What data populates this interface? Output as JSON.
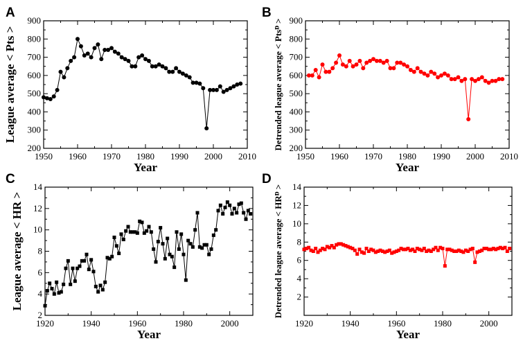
{
  "chart_data": [
    {
      "type": "line",
      "panel": "A",
      "xlabel": "Year",
      "ylabel": "League average < Pts >",
      "xlim": [
        1950,
        2010
      ],
      "ylim": [
        200,
        900
      ],
      "xticks": [
        1950,
        1960,
        1970,
        1980,
        1990,
        2000,
        2010
      ],
      "yticks": [
        200,
        300,
        400,
        500,
        600,
        700,
        800,
        900
      ],
      "marker": "circle",
      "color": "#000000",
      "series": [
        {
          "x": [
            1950,
            1951,
            1952,
            1953,
            1954,
            1955,
            1956,
            1957,
            1958,
            1959,
            1960,
            1961,
            1962,
            1963,
            1964,
            1965,
            1966,
            1967,
            1968,
            1969,
            1970,
            1971,
            1972,
            1973,
            1974,
            1975,
            1976,
            1977,
            1978,
            1979,
            1980,
            1981,
            1982,
            1983,
            1984,
            1985,
            1986,
            1987,
            1988,
            1989,
            1990,
            1991,
            1992,
            1993,
            1994,
            1995,
            1996,
            1997,
            1998,
            1999,
            2000,
            2001,
            2002,
            2003,
            2004,
            2005,
            2006,
            2007,
            2008
          ],
          "values": [
            480,
            475,
            470,
            485,
            520,
            620,
            590,
            640,
            680,
            700,
            800,
            760,
            710,
            720,
            700,
            750,
            770,
            690,
            740,
            740,
            750,
            730,
            720,
            700,
            690,
            680,
            650,
            650,
            700,
            710,
            690,
            680,
            650,
            650,
            660,
            650,
            640,
            620,
            620,
            640,
            620,
            610,
            600,
            590,
            560,
            560,
            555,
            530,
            310,
            520,
            520,
            520,
            540,
            510,
            520,
            530,
            540,
            550,
            555
          ]
        }
      ]
    },
    {
      "type": "line",
      "panel": "B",
      "xlabel": "Year",
      "ylabel": "Detrended league average < Ptsᴰ >",
      "xlim": [
        1950,
        2010
      ],
      "ylim": [
        200,
        900
      ],
      "xticks": [
        1950,
        1960,
        1970,
        1980,
        1990,
        2000,
        2010
      ],
      "yticks": [
        200,
        300,
        400,
        500,
        600,
        700,
        800,
        900
      ],
      "marker": "circle",
      "color": "#ff0000",
      "series": [
        {
          "x": [
            1951,
            1952,
            1953,
            1954,
            1955,
            1956,
            1957,
            1958,
            1959,
            1960,
            1961,
            1962,
            1963,
            1964,
            1965,
            1966,
            1967,
            1968,
            1969,
            1970,
            1971,
            1972,
            1973,
            1974,
            1975,
            1976,
            1977,
            1978,
            1979,
            1980,
            1981,
            1982,
            1983,
            1984,
            1985,
            1986,
            1987,
            1988,
            1989,
            1990,
            1991,
            1992,
            1993,
            1994,
            1995,
            1996,
            1997,
            1998,
            1999,
            2000,
            2001,
            2002,
            2003,
            2004,
            2005,
            2006,
            2007,
            2008
          ],
          "values": [
            600,
            600,
            630,
            590,
            660,
            620,
            620,
            640,
            670,
            710,
            660,
            650,
            680,
            650,
            660,
            680,
            640,
            670,
            680,
            690,
            680,
            680,
            670,
            680,
            640,
            640,
            670,
            670,
            660,
            650,
            630,
            620,
            640,
            620,
            610,
            600,
            620,
            610,
            590,
            600,
            610,
            600,
            580,
            580,
            590,
            570,
            580,
            360,
            580,
            570,
            580,
            590,
            570,
            560,
            570,
            570,
            580,
            580
          ]
        }
      ]
    },
    {
      "type": "line",
      "panel": "C",
      "xlabel": "Year",
      "ylabel": "League average < HR >",
      "xlim": [
        1920,
        2010
      ],
      "ylim": [
        2,
        14
      ],
      "xticks": [
        1920,
        1940,
        1960,
        1980,
        2000
      ],
      "yticks": [
        2,
        4,
        6,
        8,
        10,
        12,
        14
      ],
      "marker": "square",
      "color": "#000000",
      "series": [
        {
          "x": [
            1920,
            1921,
            1922,
            1923,
            1924,
            1925,
            1926,
            1927,
            1928,
            1929,
            1930,
            1931,
            1932,
            1933,
            1934,
            1935,
            1936,
            1937,
            1938,
            1939,
            1940,
            1941,
            1942,
            1943,
            1944,
            1945,
            1946,
            1947,
            1948,
            1949,
            1950,
            1951,
            1952,
            1953,
            1954,
            1955,
            1956,
            1957,
            1958,
            1959,
            1960,
            1961,
            1962,
            1963,
            1964,
            1965,
            1966,
            1967,
            1968,
            1969,
            1970,
            1971,
            1972,
            1973,
            1974,
            1975,
            1976,
            1977,
            1978,
            1979,
            1980,
            1981,
            1982,
            1983,
            1984,
            1985,
            1986,
            1987,
            1988,
            1989,
            1990,
            1991,
            1992,
            1993,
            1994,
            1995,
            1996,
            1997,
            1998,
            1999,
            2000,
            2001,
            2002,
            2003,
            2004,
            2005,
            2006,
            2007,
            2008,
            2009
          ],
          "values": [
            2.9,
            4.3,
            5.0,
            4.5,
            4.0,
            5.1,
            4.1,
            4.2,
            4.9,
            6.4,
            7.1,
            4.9,
            6.4,
            5.2,
            6.4,
            6.6,
            7.1,
            7.1,
            7.7,
            6.3,
            7.2,
            6.1,
            4.7,
            4.2,
            4.8,
            4.4,
            5.1,
            7.4,
            7.3,
            7.5,
            9.3,
            8.5,
            7.8,
            9.6,
            9.1,
            9.9,
            10.3,
            9.8,
            9.8,
            9.8,
            9.7,
            10.8,
            10.7,
            9.7,
            9.9,
            10.3,
            9.8,
            8.2,
            7.0,
            8.9,
            10.2,
            8.7,
            7.3,
            9.2,
            7.7,
            7.5,
            6.5,
            9.8,
            8.2,
            9.6,
            7.7,
            5.3,
            9.0,
            8.7,
            8.4,
            10.0,
            11.6,
            8.4,
            8.3,
            8.6,
            8.6,
            7.7,
            8.2,
            9.5,
            10.0,
            11.8,
            12.3,
            11.5,
            12.1,
            12.6,
            12.3,
            11.5,
            12.0,
            11.6,
            12.4,
            12.5,
            11.6,
            11.0,
            11.8,
            11.5
          ]
        }
      ]
    },
    {
      "type": "line",
      "panel": "D",
      "xlabel": "Year",
      "ylabel": "Detrended league average < HRᴰ >",
      "xlim": [
        1920,
        2010
      ],
      "ylim": [
        0,
        14
      ],
      "xticks": [
        1920,
        1940,
        1960,
        1980,
        2000
      ],
      "yticks": [
        2,
        4,
        6,
        8,
        10,
        12,
        14
      ],
      "marker": "square",
      "color": "#ff0000",
      "series": [
        {
          "x": [
            1920,
            1921,
            1922,
            1923,
            1924,
            1925,
            1926,
            1927,
            1928,
            1929,
            1930,
            1931,
            1932,
            1933,
            1934,
            1935,
            1936,
            1937,
            1938,
            1939,
            1940,
            1941,
            1942,
            1943,
            1944,
            1945,
            1946,
            1947,
            1948,
            1949,
            1950,
            1951,
            1952,
            1953,
            1954,
            1955,
            1956,
            1957,
            1958,
            1959,
            1960,
            1961,
            1962,
            1963,
            1964,
            1965,
            1966,
            1967,
            1968,
            1969,
            1970,
            1971,
            1972,
            1973,
            1974,
            1975,
            1976,
            1977,
            1978,
            1979,
            1980,
            1981,
            1982,
            1983,
            1984,
            1985,
            1986,
            1987,
            1988,
            1989,
            1990,
            1991,
            1992,
            1993,
            1994,
            1995,
            1996,
            1997,
            1998,
            1999,
            2000,
            2001,
            2002,
            2003,
            2004,
            2005,
            2006,
            2007,
            2008,
            2009
          ],
          "values": [
            7.2,
            7.3,
            7.4,
            7.1,
            7.0,
            7.3,
            6.9,
            7.1,
            7.3,
            7.2,
            7.5,
            7.4,
            7.6,
            7.4,
            7.7,
            7.8,
            7.8,
            7.7,
            7.6,
            7.5,
            7.4,
            7.3,
            7.1,
            6.7,
            7.2,
            6.9,
            6.8,
            7.3,
            7.0,
            7.2,
            7.1,
            6.9,
            7.0,
            7.1,
            7.0,
            6.9,
            7.0,
            7.1,
            6.8,
            6.9,
            7.0,
            7.1,
            7.3,
            7.2,
            7.2,
            7.3,
            7.1,
            7.2,
            7.0,
            7.3,
            7.2,
            7.1,
            7.3,
            7.0,
            7.1,
            7.0,
            7.2,
            7.4,
            7.1,
            7.4,
            7.3,
            5.4,
            7.2,
            7.2,
            7.1,
            7.0,
            7.0,
            7.1,
            7.0,
            6.9,
            7.1,
            7.0,
            7.2,
            7.3,
            5.8,
            6.9,
            7.0,
            7.1,
            7.3,
            7.3,
            7.2,
            7.2,
            7.3,
            7.2,
            7.3,
            7.4,
            7.3,
            7.4,
            7.0,
            7.3
          ]
        }
      ]
    }
  ]
}
